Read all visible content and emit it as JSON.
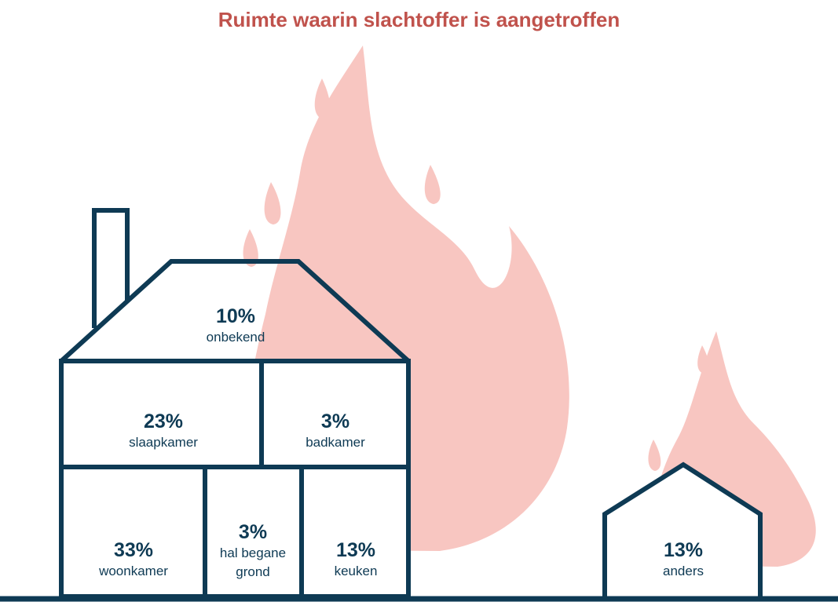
{
  "title": "Ruimte waarin slachtoffer is aangetroffen",
  "rooms": [
    {
      "percent": "10%",
      "label": "onbekend"
    },
    {
      "percent": "23%",
      "label": "slaapkamer"
    },
    {
      "percent": "3%",
      "label": "badkamer"
    },
    {
      "percent": "33%",
      "label": "woonkamer"
    },
    {
      "percent": "3%",
      "label": "hal begane grond"
    },
    {
      "percent": "13%",
      "label": "keuken"
    },
    {
      "percent": "13%",
      "label": "anders"
    }
  ]
}
